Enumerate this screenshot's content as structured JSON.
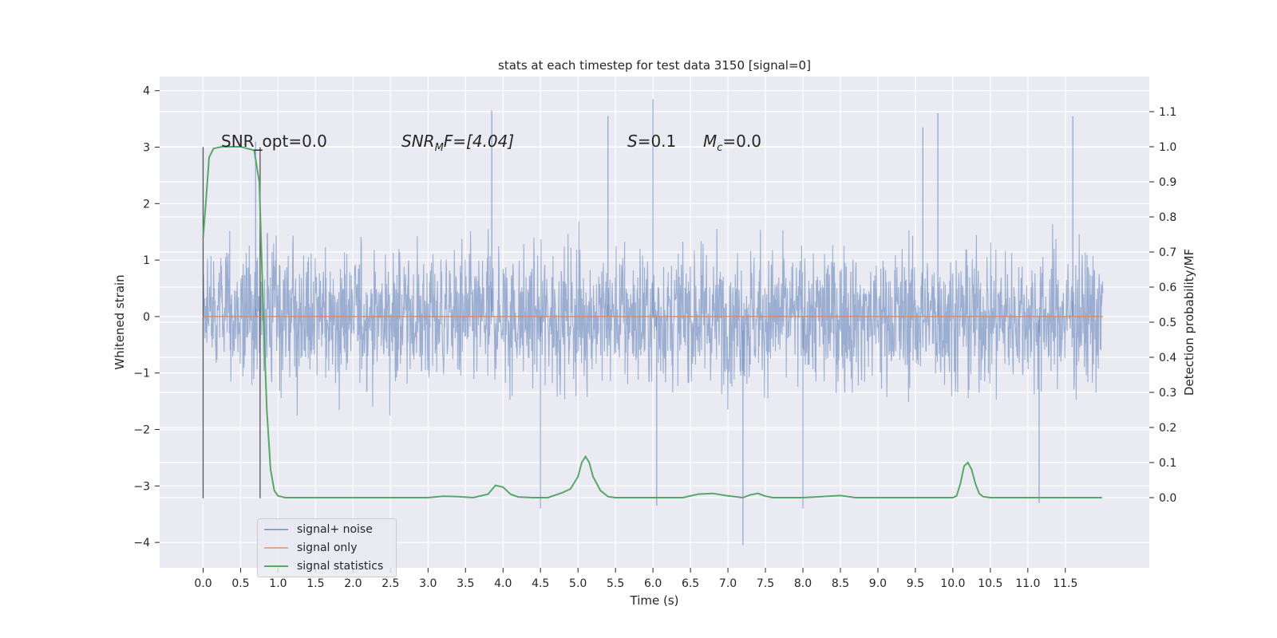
{
  "chart_data": {
    "type": "line",
    "title": "stats at each timestep for test data 3150 [signal=0]",
    "xlabel": "Time (s)",
    "ylabel": "Whitened strain",
    "ylabel_right": "Detection probability/MF",
    "xlim": [
      -0.58,
      12.62
    ],
    "ylim": [
      -4.45,
      4.25
    ],
    "ylim_right": [
      -0.2,
      1.2
    ],
    "xticks": [
      "0.0",
      "0.5",
      "1.0",
      "1.5",
      "2.0",
      "2.5",
      "3.0",
      "3.5",
      "4.0",
      "4.5",
      "5.0",
      "5.5",
      "6.0",
      "6.5",
      "7.0",
      "7.5",
      "8.0",
      "8.5",
      "9.0",
      "9.5",
      "10.0",
      "10.5",
      "11.0",
      "11.5"
    ],
    "yticks": [
      "4",
      "3",
      "2",
      "1",
      "0",
      "−1",
      "−2",
      "−3",
      "−4"
    ],
    "yticks_right": [
      "1.1",
      "1.0",
      "0.9",
      "0.8",
      "0.7",
      "0.6",
      "0.5",
      "0.4",
      "0.3",
      "0.2",
      "0.1",
      "0.0"
    ],
    "grid": true,
    "legend_placement": "lower-left",
    "annotations": {
      "snr_opt": "SNR_opt=0.0",
      "snr_mf_pre": "SNR",
      "snr_mf_sub": "M",
      "snr_mf_post": "F=[4.04]",
      "s_pre": "S",
      "s_post": "=0.1",
      "mc_pre": "M",
      "mc_sub": "c",
      "mc_post": "=0.0"
    },
    "vertical_lines": [
      0.0,
      0.76
    ],
    "vertical_line_range": [
      -3.22,
      3.0
    ],
    "series": [
      {
        "name": "signal+ noise",
        "color": "#4c72b0",
        "x_range": [
          0.0,
          12.0
        ],
        "typical_band": [
          -1.8,
          1.8
        ],
        "peaks": [
          {
            "x": 3.85,
            "y": 3.65
          },
          {
            "x": 5.4,
            "y": 3.55
          },
          {
            "x": 6.0,
            "y": 3.85
          },
          {
            "x": 7.2,
            "y": -4.05
          },
          {
            "x": 9.8,
            "y": 3.6
          },
          {
            "x": 11.6,
            "y": 3.55
          },
          {
            "x": 4.5,
            "y": -3.4
          },
          {
            "x": 6.05,
            "y": -3.35
          },
          {
            "x": 8.0,
            "y": -3.4
          },
          {
            "x": 11.15,
            "y": -3.3
          },
          {
            "x": 9.6,
            "y": 3.35
          },
          {
            "x": 0.7,
            "y": 3.1
          }
        ]
      },
      {
        "name": "signal only",
        "color": "#dd8452",
        "x": [
          0.0,
          12.0
        ],
        "y": [
          0.0,
          0.0
        ]
      },
      {
        "name": "signal statistics",
        "color": "#55a868",
        "axis": "right",
        "x": [
          0.0,
          0.04,
          0.08,
          0.14,
          0.25,
          0.5,
          0.68,
          0.75,
          0.8,
          0.85,
          0.9,
          0.95,
          1.0,
          1.1,
          1.5,
          2.5,
          3.0,
          3.2,
          3.4,
          3.6,
          3.8,
          3.9,
          4.0,
          4.1,
          4.2,
          4.4,
          4.6,
          4.8,
          4.9,
          5.0,
          5.05,
          5.1,
          5.15,
          5.2,
          5.3,
          5.4,
          5.5,
          5.6,
          6.0,
          6.4,
          6.6,
          6.8,
          7.0,
          7.2,
          7.3,
          7.4,
          7.5,
          7.6,
          8.0,
          8.5,
          8.7,
          9.0,
          10.0,
          10.05,
          10.1,
          10.15,
          10.2,
          10.25,
          10.3,
          10.35,
          10.4,
          10.5,
          10.7,
          11.0,
          11.5,
          11.99
        ],
        "y": [
          0.74,
          0.85,
          0.97,
          0.995,
          1.0,
          1.0,
          0.99,
          0.9,
          0.55,
          0.25,
          0.08,
          0.02,
          0.005,
          0.0,
          0.0,
          0.0,
          0.0,
          0.004,
          0.003,
          0.0,
          0.01,
          0.035,
          0.03,
          0.01,
          0.002,
          0.0,
          0.0,
          0.015,
          0.025,
          0.06,
          0.1,
          0.117,
          0.1,
          0.06,
          0.02,
          0.003,
          0.0,
          0.0,
          0.0,
          0.0,
          0.01,
          0.012,
          0.005,
          0.0,
          0.008,
          0.012,
          0.004,
          0.0,
          0.0,
          0.006,
          0.0,
          0.0,
          0.0,
          0.005,
          0.04,
          0.09,
          0.1,
          0.08,
          0.04,
          0.012,
          0.003,
          0.0,
          0.0,
          0.0,
          0.0,
          0.0
        ]
      }
    ]
  }
}
